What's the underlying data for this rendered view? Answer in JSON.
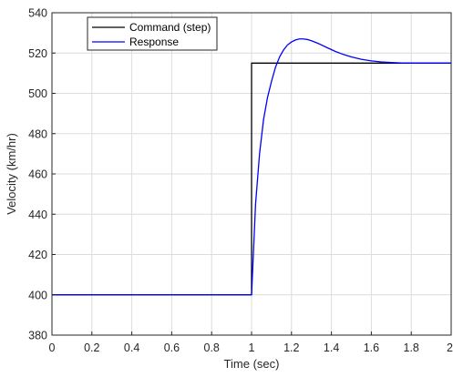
{
  "chart_data": {
    "type": "line",
    "title": "",
    "xlabel": "Time (sec)",
    "ylabel": "Velocity (km/hr)",
    "xlim": [
      0,
      2
    ],
    "ylim": [
      380,
      540
    ],
    "xticks": [
      "0",
      "0.2",
      "0.4",
      "0.6",
      "0.8",
      "1",
      "1.2",
      "1.4",
      "1.6",
      "1.8",
      "2"
    ],
    "yticks": [
      "380",
      "400",
      "420",
      "440",
      "460",
      "480",
      "500",
      "520",
      "540"
    ],
    "grid": true,
    "legend_position": "top-left",
    "series": [
      {
        "name": "Command (step)",
        "color": "#000000",
        "x": [
          0,
          1.0,
          1.0,
          2.0
        ],
        "y": [
          400,
          400,
          515,
          515
        ]
      },
      {
        "name": "Response",
        "color": "#0000ff",
        "x": [
          0,
          1.0,
          1.02,
          1.04,
          1.06,
          1.08,
          1.1,
          1.12,
          1.14,
          1.16,
          1.18,
          1.2,
          1.22,
          1.24,
          1.26,
          1.28,
          1.3,
          1.34,
          1.38,
          1.42,
          1.46,
          1.5,
          1.55,
          1.6,
          1.65,
          1.7,
          1.75,
          1.8,
          1.85,
          1.9,
          1.95,
          2.0
        ],
        "y": [
          400,
          400,
          445,
          470,
          487,
          498,
          506,
          513,
          518,
          521.5,
          524,
          525.5,
          526.5,
          527,
          527,
          526.7,
          526.1,
          524.5,
          522.6,
          520.8,
          519.3,
          518.1,
          516.9,
          516.1,
          515.6,
          515.3,
          515.1,
          515.0,
          515.0,
          515.0,
          515.0,
          515.0
        ]
      }
    ]
  }
}
